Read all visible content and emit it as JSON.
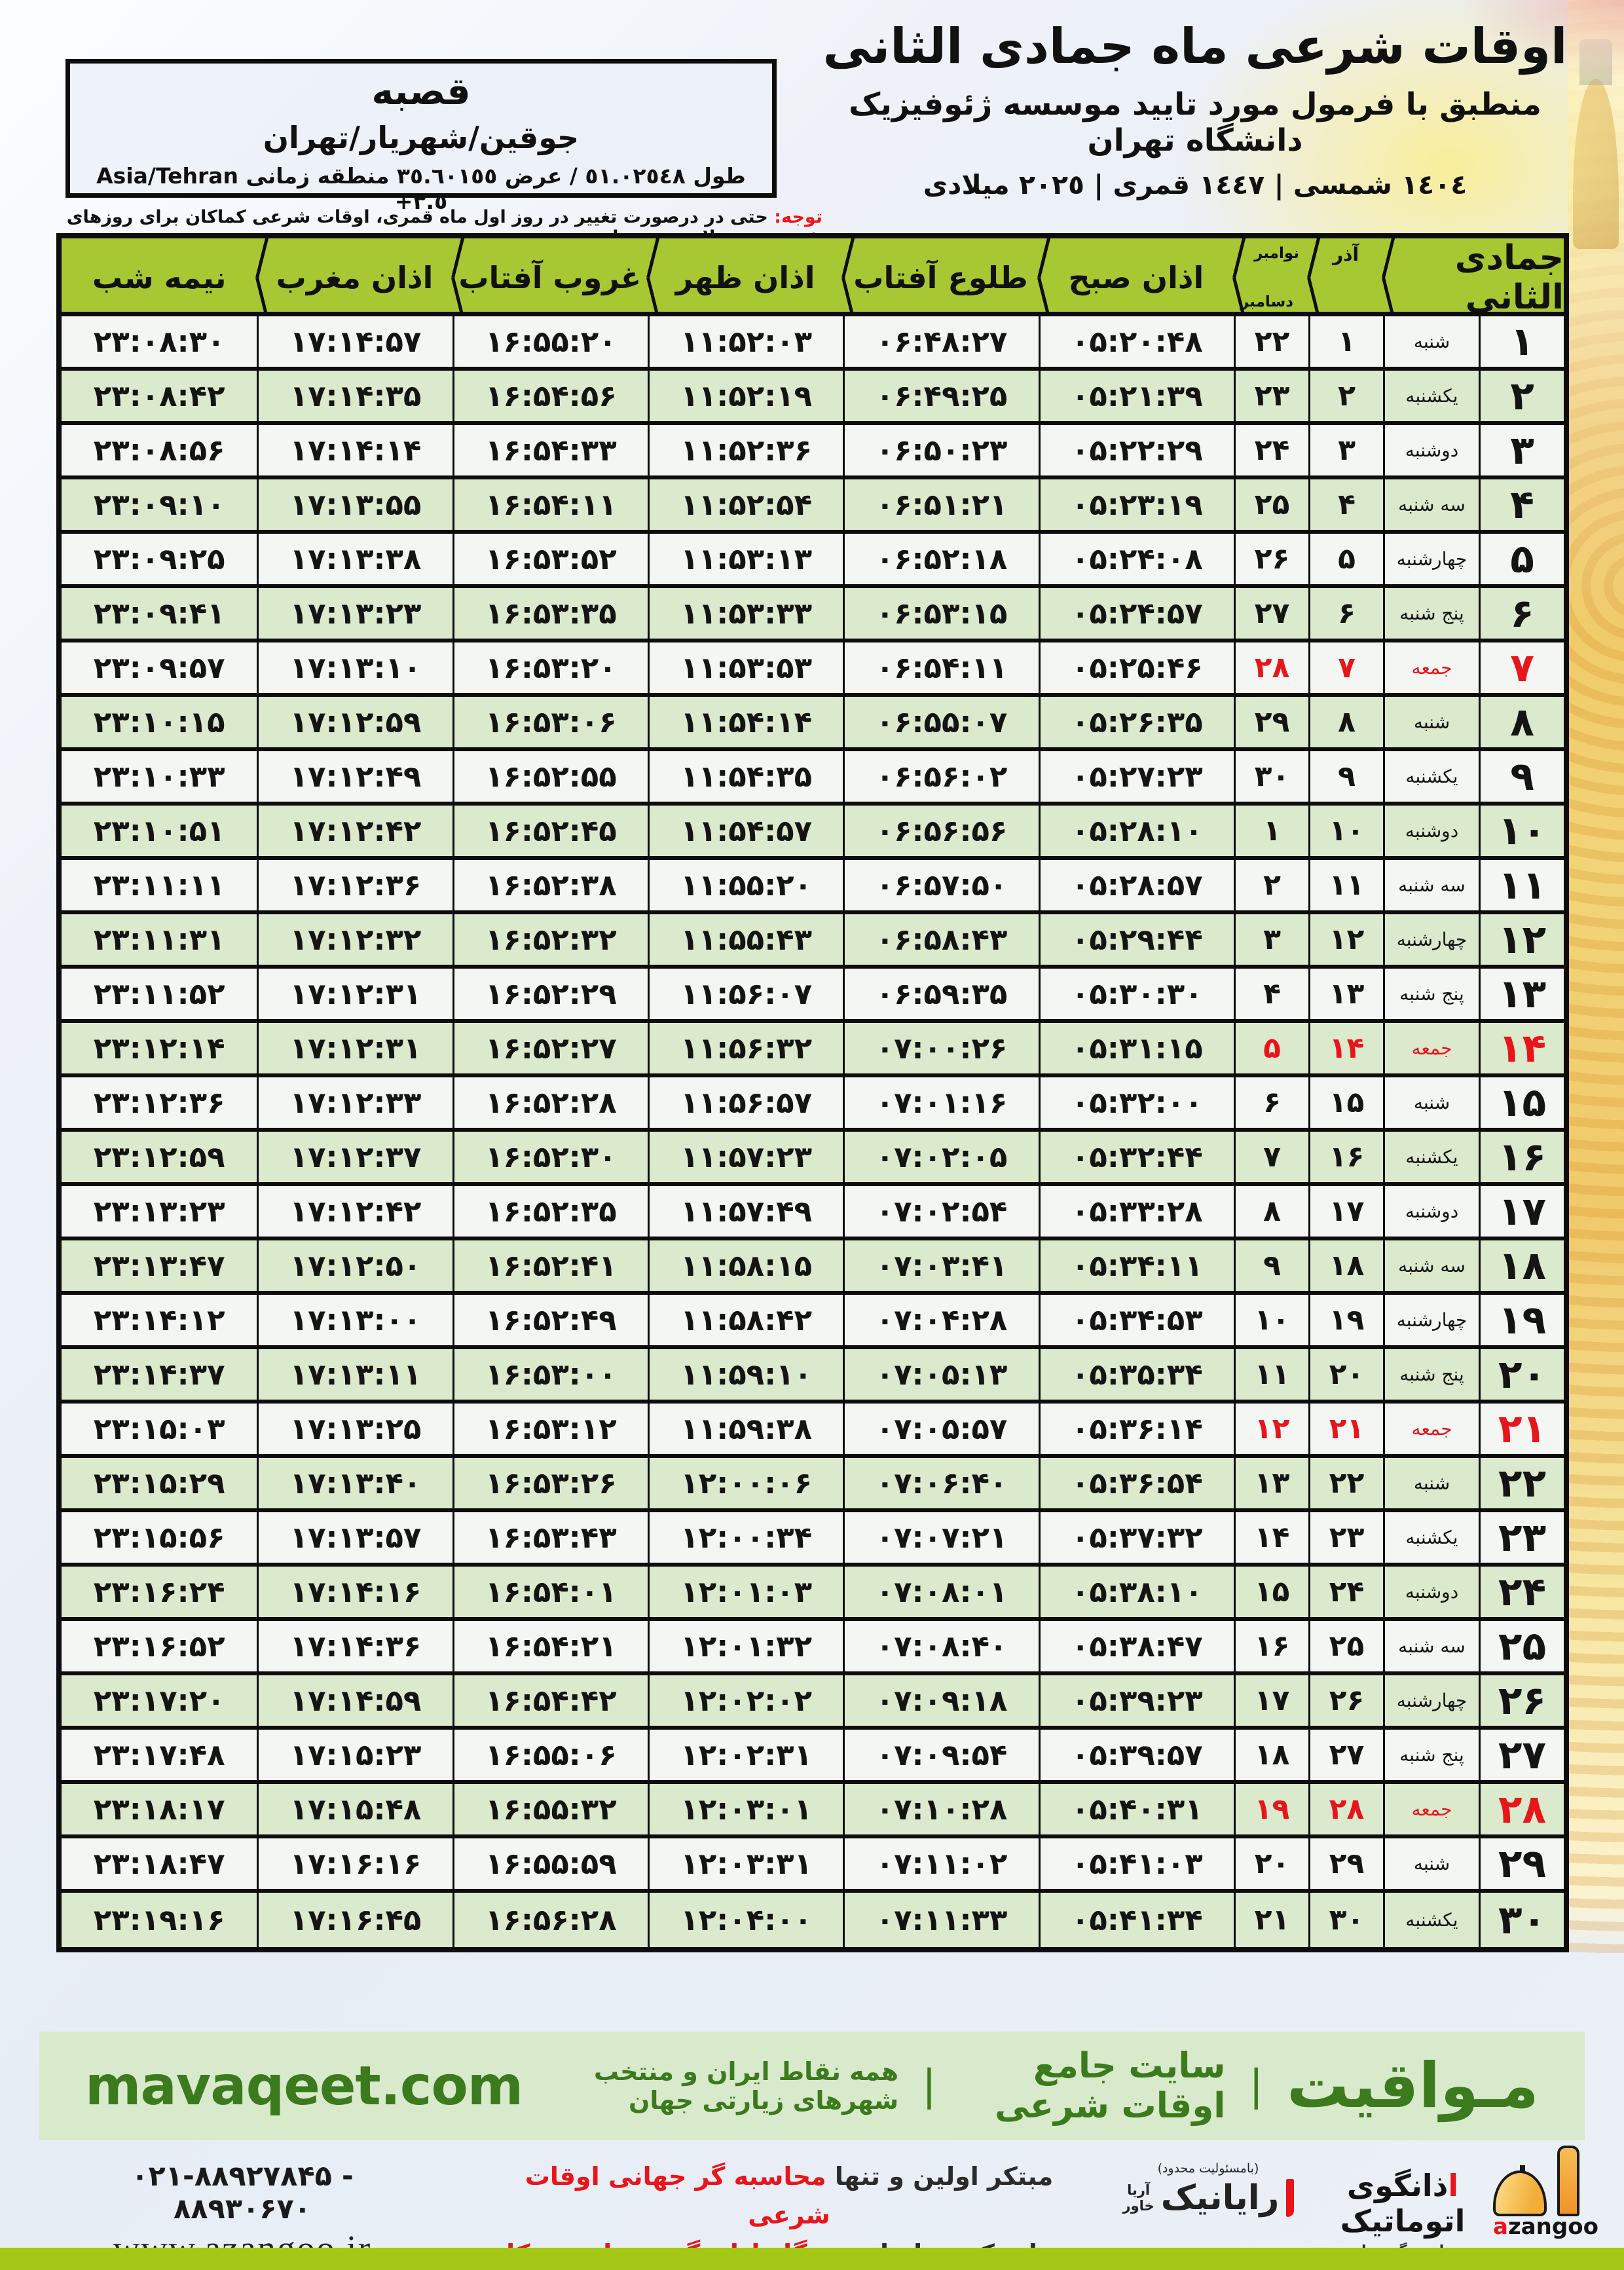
{
  "header": {
    "title": "اوقات شرعی ماه جمادی الثانی",
    "subtitle": "منطبق با فرمول مورد تایید موسسه ژئوفیزیک دانشگاه تهران",
    "years": "١٤٠٤ شمسی | ١٤٤٧ قمری | ٢٠٢٥ میلادی"
  },
  "location": {
    "name": "قصبه",
    "region": "جوقین/شهریار/تهران",
    "coords_rtl": "طول ٥١.٠٢٥٤٨ / عرض ٣٥.٦٠١٥٥ منطقه زمانی",
    "coords_ltr": "Asia/Tehran +٣.٥"
  },
  "note": {
    "label": "توجه:",
    "text": " حتی در درصورت تغییر در روز اول ماه قمری، اوقات شرعی کماکان برای روزهای شمسی و میلادی معتبر است."
  },
  "table": {
    "headers": {
      "month": "جمادی الثانی",
      "azar": "آذر",
      "november": "نوامبر",
      "december": "دسامبر",
      "fajr": "اذان صبح",
      "sunrise": "طلوع آفتاب",
      "dhuhr": "اذان ظهر",
      "sunset": "غروب آفتاب",
      "maghrib": "اذان مغرب",
      "midnight": "نیمه شب"
    },
    "friday_label": "جمعه",
    "rows": [
      {
        "day": "۱",
        "wd": "شنبه",
        "azar": "۱",
        "greg": "۲۲",
        "fajr": "۰۵:۲۰:۴۸",
        "rise": "۰۶:۴۸:۲۷",
        "noon": "۱۱:۵۲:۰۳",
        "set": "۱۶:۵۵:۲۰",
        "magh": "۱۷:۱۴:۵۷",
        "mid": "۲۳:۰۸:۳۰"
      },
      {
        "day": "۲",
        "wd": "یکشنبه",
        "azar": "۲",
        "greg": "۲۳",
        "fajr": "۰۵:۲۱:۳۹",
        "rise": "۰۶:۴۹:۲۵",
        "noon": "۱۱:۵۲:۱۹",
        "set": "۱۶:۵۴:۵۶",
        "magh": "۱۷:۱۴:۳۵",
        "mid": "۲۳:۰۸:۴۲"
      },
      {
        "day": "۳",
        "wd": "دوشنبه",
        "azar": "۳",
        "greg": "۲۴",
        "fajr": "۰۵:۲۲:۲۹",
        "rise": "۰۶:۵۰:۲۳",
        "noon": "۱۱:۵۲:۳۶",
        "set": "۱۶:۵۴:۳۳",
        "magh": "۱۷:۱۴:۱۴",
        "mid": "۲۳:۰۸:۵۶"
      },
      {
        "day": "۴",
        "wd": "سه شنبه",
        "azar": "۴",
        "greg": "۲۵",
        "fajr": "۰۵:۲۳:۱۹",
        "rise": "۰۶:۵۱:۲۱",
        "noon": "۱۱:۵۲:۵۴",
        "set": "۱۶:۵۴:۱۱",
        "magh": "۱۷:۱۳:۵۵",
        "mid": "۲۳:۰۹:۱۰"
      },
      {
        "day": "۵",
        "wd": "چهارشنبه",
        "azar": "۵",
        "greg": "۲۶",
        "fajr": "۰۵:۲۴:۰۸",
        "rise": "۰۶:۵۲:۱۸",
        "noon": "۱۱:۵۳:۱۳",
        "set": "۱۶:۵۳:۵۲",
        "magh": "۱۷:۱۳:۳۸",
        "mid": "۲۳:۰۹:۲۵"
      },
      {
        "day": "۶",
        "wd": "پنج شنبه",
        "azar": "۶",
        "greg": "۲۷",
        "fajr": "۰۵:۲۴:۵۷",
        "rise": "۰۶:۵۳:۱۵",
        "noon": "۱۱:۵۳:۳۳",
        "set": "۱۶:۵۳:۳۵",
        "magh": "۱۷:۱۳:۲۳",
        "mid": "۲۳:۰۹:۴۱"
      },
      {
        "day": "۷",
        "wd": "جمعه",
        "azar": "۷",
        "greg": "۲۸",
        "fajr": "۰۵:۲۵:۴۶",
        "rise": "۰۶:۵۴:۱۱",
        "noon": "۱۱:۵۳:۵۳",
        "set": "۱۶:۵۳:۲۰",
        "magh": "۱۷:۱۳:۱۰",
        "mid": "۲۳:۰۹:۵۷"
      },
      {
        "day": "۸",
        "wd": "شنبه",
        "azar": "۸",
        "greg": "۲۹",
        "fajr": "۰۵:۲۶:۳۵",
        "rise": "۰۶:۵۵:۰۷",
        "noon": "۱۱:۵۴:۱۴",
        "set": "۱۶:۵۳:۰۶",
        "magh": "۱۷:۱۲:۵۹",
        "mid": "۲۳:۱۰:۱۵"
      },
      {
        "day": "۹",
        "wd": "یکشنبه",
        "azar": "۹",
        "greg": "۳۰",
        "fajr": "۰۵:۲۷:۲۳",
        "rise": "۰۶:۵۶:۰۲",
        "noon": "۱۱:۵۴:۳۵",
        "set": "۱۶:۵۲:۵۵",
        "magh": "۱۷:۱۲:۴۹",
        "mid": "۲۳:۱۰:۳۳"
      },
      {
        "day": "۱۰",
        "wd": "دوشنبه",
        "azar": "۱۰",
        "greg": "۱",
        "fajr": "۰۵:۲۸:۱۰",
        "rise": "۰۶:۵۶:۵۶",
        "noon": "۱۱:۵۴:۵۷",
        "set": "۱۶:۵۲:۴۵",
        "magh": "۱۷:۱۲:۴۲",
        "mid": "۲۳:۱۰:۵۱"
      },
      {
        "day": "۱۱",
        "wd": "سه شنبه",
        "azar": "۱۱",
        "greg": "۲",
        "fajr": "۰۵:۲۸:۵۷",
        "rise": "۰۶:۵۷:۵۰",
        "noon": "۱۱:۵۵:۲۰",
        "set": "۱۶:۵۲:۳۸",
        "magh": "۱۷:۱۲:۳۶",
        "mid": "۲۳:۱۱:۱۱"
      },
      {
        "day": "۱۲",
        "wd": "چهارشنبه",
        "azar": "۱۲",
        "greg": "۳",
        "fajr": "۰۵:۲۹:۴۴",
        "rise": "۰۶:۵۸:۴۳",
        "noon": "۱۱:۵۵:۴۳",
        "set": "۱۶:۵۲:۳۲",
        "magh": "۱۷:۱۲:۳۲",
        "mid": "۲۳:۱۱:۳۱"
      },
      {
        "day": "۱۳",
        "wd": "پنج شنبه",
        "azar": "۱۳",
        "greg": "۴",
        "fajr": "۰۵:۳۰:۳۰",
        "rise": "۰۶:۵۹:۳۵",
        "noon": "۱۱:۵۶:۰۷",
        "set": "۱۶:۵۲:۲۹",
        "magh": "۱۷:۱۲:۳۱",
        "mid": "۲۳:۱۱:۵۲"
      },
      {
        "day": "۱۴",
        "wd": "جمعه",
        "azar": "۱۴",
        "greg": "۵",
        "fajr": "۰۵:۳۱:۱۵",
        "rise": "۰۷:۰۰:۲۶",
        "noon": "۱۱:۵۶:۳۲",
        "set": "۱۶:۵۲:۲۷",
        "magh": "۱۷:۱۲:۳۱",
        "mid": "۲۳:۱۲:۱۴"
      },
      {
        "day": "۱۵",
        "wd": "شنبه",
        "azar": "۱۵",
        "greg": "۶",
        "fajr": "۰۵:۳۲:۰۰",
        "rise": "۰۷:۰۱:۱۶",
        "noon": "۱۱:۵۶:۵۷",
        "set": "۱۶:۵۲:۲۸",
        "magh": "۱۷:۱۲:۳۳",
        "mid": "۲۳:۱۲:۳۶"
      },
      {
        "day": "۱۶",
        "wd": "یکشنبه",
        "azar": "۱۶",
        "greg": "۷",
        "fajr": "۰۵:۳۲:۴۴",
        "rise": "۰۷:۰۲:۰۵",
        "noon": "۱۱:۵۷:۲۳",
        "set": "۱۶:۵۲:۳۰",
        "magh": "۱۷:۱۲:۳۷",
        "mid": "۲۳:۱۲:۵۹"
      },
      {
        "day": "۱۷",
        "wd": "دوشنبه",
        "azar": "۱۷",
        "greg": "۸",
        "fajr": "۰۵:۳۳:۲۸",
        "rise": "۰۷:۰۲:۵۴",
        "noon": "۱۱:۵۷:۴۹",
        "set": "۱۶:۵۲:۳۵",
        "magh": "۱۷:۱۲:۴۲",
        "mid": "۲۳:۱۳:۲۳"
      },
      {
        "day": "۱۸",
        "wd": "سه شنبه",
        "azar": "۱۸",
        "greg": "۹",
        "fajr": "۰۵:۳۴:۱۱",
        "rise": "۰۷:۰۳:۴۱",
        "noon": "۱۱:۵۸:۱۵",
        "set": "۱۶:۵۲:۴۱",
        "magh": "۱۷:۱۲:۵۰",
        "mid": "۲۳:۱۳:۴۷"
      },
      {
        "day": "۱۹",
        "wd": "چهارشنبه",
        "azar": "۱۹",
        "greg": "۱۰",
        "fajr": "۰۵:۳۴:۵۳",
        "rise": "۰۷:۰۴:۲۸",
        "noon": "۱۱:۵۸:۴۲",
        "set": "۱۶:۵۲:۴۹",
        "magh": "۱۷:۱۳:۰۰",
        "mid": "۲۳:۱۴:۱۲"
      },
      {
        "day": "۲۰",
        "wd": "پنج شنبه",
        "azar": "۲۰",
        "greg": "۱۱",
        "fajr": "۰۵:۳۵:۳۴",
        "rise": "۰۷:۰۵:۱۳",
        "noon": "۱۱:۵۹:۱۰",
        "set": "۱۶:۵۳:۰۰",
        "magh": "۱۷:۱۳:۱۱",
        "mid": "۲۳:۱۴:۳۷"
      },
      {
        "day": "۲۱",
        "wd": "جمعه",
        "azar": "۲۱",
        "greg": "۱۲",
        "fajr": "۰۵:۳۶:۱۴",
        "rise": "۰۷:۰۵:۵۷",
        "noon": "۱۱:۵۹:۳۸",
        "set": "۱۶:۵۳:۱۲",
        "magh": "۱۷:۱۳:۲۵",
        "mid": "۲۳:۱۵:۰۳"
      },
      {
        "day": "۲۲",
        "wd": "شنبه",
        "azar": "۲۲",
        "greg": "۱۳",
        "fajr": "۰۵:۳۶:۵۴",
        "rise": "۰۷:۰۶:۴۰",
        "noon": "۱۲:۰۰:۰۶",
        "set": "۱۶:۵۳:۲۶",
        "magh": "۱۷:۱۳:۴۰",
        "mid": "۲۳:۱۵:۲۹"
      },
      {
        "day": "۲۳",
        "wd": "یکشنبه",
        "azar": "۲۳",
        "greg": "۱۴",
        "fajr": "۰۵:۳۷:۳۲",
        "rise": "۰۷:۰۷:۲۱",
        "noon": "۱۲:۰۰:۳۴",
        "set": "۱۶:۵۳:۴۳",
        "magh": "۱۷:۱۳:۵۷",
        "mid": "۲۳:۱۵:۵۶"
      },
      {
        "day": "۲۴",
        "wd": "دوشنبه",
        "azar": "۲۴",
        "greg": "۱۵",
        "fajr": "۰۵:۳۸:۱۰",
        "rise": "۰۷:۰۸:۰۱",
        "noon": "۱۲:۰۱:۰۳",
        "set": "۱۶:۵۴:۰۱",
        "magh": "۱۷:۱۴:۱۶",
        "mid": "۲۳:۱۶:۲۴"
      },
      {
        "day": "۲۵",
        "wd": "سه شنبه",
        "azar": "۲۵",
        "greg": "۱۶",
        "fajr": "۰۵:۳۸:۴۷",
        "rise": "۰۷:۰۸:۴۰",
        "noon": "۱۲:۰۱:۳۲",
        "set": "۱۶:۵۴:۲۱",
        "magh": "۱۷:۱۴:۳۶",
        "mid": "۲۳:۱۶:۵۲"
      },
      {
        "day": "۲۶",
        "wd": "چهارشنبه",
        "azar": "۲۶",
        "greg": "۱۷",
        "fajr": "۰۵:۳۹:۲۳",
        "rise": "۰۷:۰۹:۱۸",
        "noon": "۱۲:۰۲:۰۲",
        "set": "۱۶:۵۴:۴۲",
        "magh": "۱۷:۱۴:۵۹",
        "mid": "۲۳:۱۷:۲۰"
      },
      {
        "day": "۲۷",
        "wd": "پنج شنبه",
        "azar": "۲۷",
        "greg": "۱۸",
        "fajr": "۰۵:۳۹:۵۷",
        "rise": "۰۷:۰۹:۵۴",
        "noon": "۱۲:۰۲:۳۱",
        "set": "۱۶:۵۵:۰۶",
        "magh": "۱۷:۱۵:۲۳",
        "mid": "۲۳:۱۷:۴۸"
      },
      {
        "day": "۲۸",
        "wd": "جمعه",
        "azar": "۲۸",
        "greg": "۱۹",
        "fajr": "۰۵:۴۰:۳۱",
        "rise": "۰۷:۱۰:۲۸",
        "noon": "۱۲:۰۳:۰۱",
        "set": "۱۶:۵۵:۳۲",
        "magh": "۱۷:۱۵:۴۸",
        "mid": "۲۳:۱۸:۱۷"
      },
      {
        "day": "۲۹",
        "wd": "شنبه",
        "azar": "۲۹",
        "greg": "۲۰",
        "fajr": "۰۵:۴۱:۰۳",
        "rise": "۰۷:۱۱:۰۲",
        "noon": "۱۲:۰۳:۳۱",
        "set": "۱۶:۵۵:۵۹",
        "magh": "۱۷:۱۶:۱۶",
        "mid": "۲۳:۱۸:۴۷"
      },
      {
        "day": "۳۰",
        "wd": "یکشنبه",
        "azar": "۳۰",
        "greg": "۲۱",
        "fajr": "۰۵:۴۱:۳۴",
        "rise": "۰۷:۱۱:۳۳",
        "noon": "۱۲:۰۴:۰۰",
        "set": "۱۶:۵۶:۲۸",
        "magh": "۱۷:۱۶:۴۵",
        "mid": "۲۳:۱۹:۱۶"
      }
    ]
  },
  "band": {
    "brand": "مـواقیت",
    "site": "سایت جامع اوقات شرعی",
    "coverage": "همه نقاط ایران و منتخب شهرهای زیارتی جهان",
    "url": "mavaqeet.com",
    "sep": "|"
  },
  "bottom": {
    "phone": "۰۲۱-۸۸۹۲۷۸۴۵ - ۸۸۹۳۰۶۷۰",
    "website": "www.azangoo.ir",
    "line1_black": "مبتکر اولین و تنها ",
    "line1_red": "محاسبه گر جهانی اوقات شرعی",
    "line2_black": "و تولید کننده انواع ",
    "line2_red": "دستگاه اذان گوی تمام خودکار ماهواره ای",
    "rayanik_small": "(بامسئولیت محدود)",
    "rayanik_name": "رایانیک",
    "rayanik_sub1": "آریا",
    "rayanik_sub2": "خاور",
    "azangoo_title_red": "ا",
    "azangoo_title": "ذانگوی اتوماتیک",
    "azangoo_sub": "محاسبه گر جهانی اوقات شرعی",
    "azangoo_latin_red": "a",
    "azangoo_latin": "zangoo"
  },
  "colors": {
    "header_green": "#a7c733",
    "row_green": "#dbe9cd",
    "row_white": "#f4f6f3",
    "accent_red": "#e8151b",
    "band_bg": "#d9e9cb",
    "band_text": "#3b7a1d",
    "lime_bar": "#a4c614",
    "border_black": "#0d0d0d"
  }
}
